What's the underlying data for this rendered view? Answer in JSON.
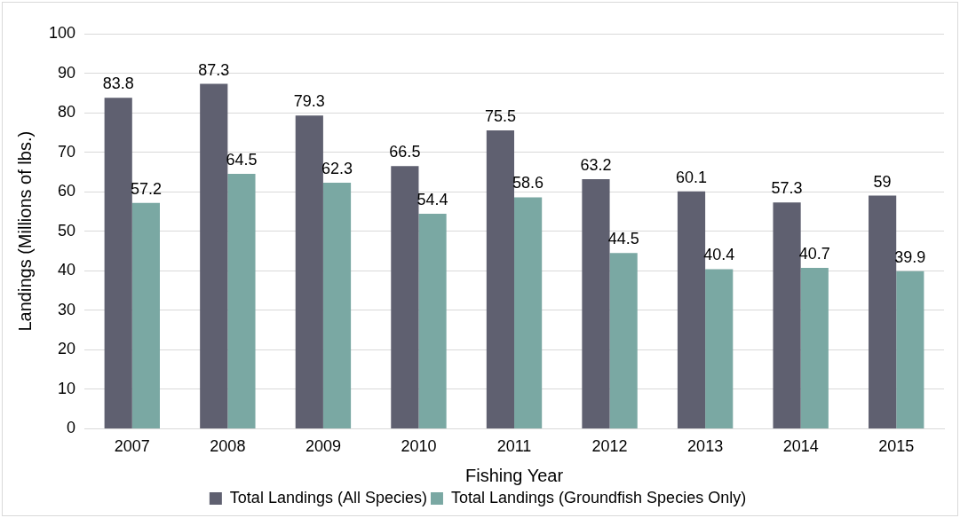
{
  "chart_data": {
    "type": "bar",
    "xlabel": "Fishing Year",
    "ylabel": "Landings (Millions of lbs.)",
    "categories": [
      "2007",
      "2008",
      "2009",
      "2010",
      "2011",
      "2012",
      "2013",
      "2014",
      "2015"
    ],
    "series": [
      {
        "name": "Total Landings (All Species)",
        "color": "#5f6070",
        "values": [
          83.8,
          87.3,
          79.3,
          66.5,
          75.5,
          63.2,
          60.1,
          57.3,
          59
        ]
      },
      {
        "name": "Total Landings (Groundfish Species Only)",
        "color": "#7aa8a3",
        "values": [
          57.2,
          64.5,
          62.3,
          54.4,
          58.6,
          44.5,
          40.4,
          40.7,
          39.9
        ]
      }
    ],
    "ylim": [
      0,
      100
    ],
    "yticks": [
      0,
      10,
      20,
      30,
      40,
      50,
      60,
      70,
      80,
      90,
      100
    ],
    "grid": "y",
    "legend": "bottom",
    "data_labels": true
  }
}
